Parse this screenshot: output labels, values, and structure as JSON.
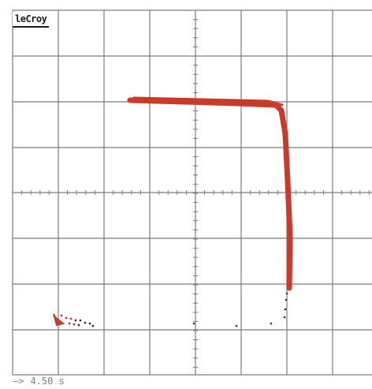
{
  "scope": {
    "brand": "leCroy",
    "readout": {
      "arrow_glyph": "—>",
      "value": "4.50 s"
    },
    "colors": {
      "grid": "#7a7a7a",
      "trace": "#c93a2a",
      "background": "#ffffff",
      "readout": "#6a8a7a"
    }
  }
}
